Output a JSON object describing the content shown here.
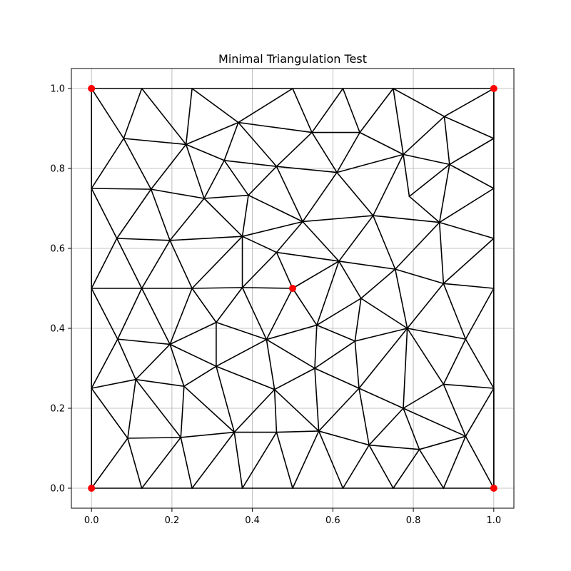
{
  "chart_data": {
    "type": "scatter",
    "title": "Minimal Triangulation Test",
    "xlabel": "",
    "ylabel": "",
    "xlim": [
      -0.05,
      1.05
    ],
    "ylim": [
      -0.05,
      1.05
    ],
    "xticks": [
      "0.0",
      "0.2",
      "0.4",
      "0.6",
      "0.8",
      "1.0"
    ],
    "yticks": [
      "0.0",
      "0.2",
      "0.4",
      "0.6",
      "0.8",
      "1.0"
    ],
    "grid": true,
    "colors": {
      "edges": "#000000",
      "highlight": "#ff0000",
      "grid": "#b0b0b0"
    },
    "highlight_points": [
      [
        0,
        0
      ],
      [
        1,
        0
      ],
      [
        0,
        1
      ],
      [
        1,
        1
      ],
      [
        0.5,
        0.5
      ]
    ],
    "vertices": [
      [
        0,
        0
      ],
      [
        0.125,
        0
      ],
      [
        0.25,
        0
      ],
      [
        0.375,
        0
      ],
      [
        0.5,
        0
      ],
      [
        0.625,
        0
      ],
      [
        0.75,
        0
      ],
      [
        0.875,
        0
      ],
      [
        1,
        0
      ],
      [
        0,
        1
      ],
      [
        0.125,
        1
      ],
      [
        0.25,
        1
      ],
      [
        0.5,
        1
      ],
      [
        0.625,
        1
      ],
      [
        0.75,
        1
      ],
      [
        1,
        1
      ],
      [
        0,
        0.25
      ],
      [
        0,
        0.5
      ],
      [
        0,
        0.75
      ],
      [
        1,
        0.25
      ],
      [
        1,
        0.5
      ],
      [
        1,
        0.625
      ],
      [
        1,
        0.75
      ],
      [
        1,
        0.875
      ],
      [
        0.08,
        0.875
      ],
      [
        0.235,
        0.86
      ],
      [
        0.365,
        0.915
      ],
      [
        0.548,
        0.89
      ],
      [
        0.667,
        0.89
      ],
      [
        0.877,
        0.93
      ],
      [
        0.33,
        0.82
      ],
      [
        0.46,
        0.805
      ],
      [
        0.61,
        0.79
      ],
      [
        0.775,
        0.835
      ],
      [
        0.89,
        0.81
      ],
      [
        0.148,
        0.748
      ],
      [
        0.28,
        0.725
      ],
      [
        0.39,
        0.733
      ],
      [
        0.79,
        0.73
      ],
      [
        0.063,
        0.625
      ],
      [
        0.195,
        0.62
      ],
      [
        0.375,
        0.63
      ],
      [
        0.525,
        0.667
      ],
      [
        0.7,
        0.682
      ],
      [
        0.865,
        0.665
      ],
      [
        0.46,
        0.59
      ],
      [
        0.615,
        0.568
      ],
      [
        0.755,
        0.548
      ],
      [
        0.125,
        0.5
      ],
      [
        0.25,
        0.5
      ],
      [
        0.375,
        0.502
      ],
      [
        0.5,
        0.5
      ],
      [
        0.875,
        0.512
      ],
      [
        0.67,
        0.475
      ],
      [
        0.31,
        0.415
      ],
      [
        0.56,
        0.408
      ],
      [
        0.785,
        0.4
      ],
      [
        0.065,
        0.373
      ],
      [
        0.195,
        0.36
      ],
      [
        0.435,
        0.372
      ],
      [
        0.655,
        0.368
      ],
      [
        0.93,
        0.373
      ],
      [
        0.31,
        0.305
      ],
      [
        0.555,
        0.3
      ],
      [
        0.11,
        0.272
      ],
      [
        0.23,
        0.255
      ],
      [
        0.455,
        0.247
      ],
      [
        0.665,
        0.25
      ],
      [
        0.875,
        0.26
      ],
      [
        0.775,
        0.2
      ],
      [
        0.355,
        0.14
      ],
      [
        0.46,
        0.14
      ],
      [
        0.565,
        0.143
      ],
      [
        0.09,
        0.125
      ],
      [
        0.222,
        0.127
      ],
      [
        0.69,
        0.108
      ],
      [
        0.815,
        0.097
      ],
      [
        0.93,
        0.13
      ]
    ],
    "edges": [
      [
        0,
        1
      ],
      [
        1,
        2
      ],
      [
        2,
        3
      ],
      [
        3,
        4
      ],
      [
        4,
        5
      ],
      [
        5,
        6
      ],
      [
        6,
        7
      ],
      [
        7,
        8
      ],
      [
        9,
        10
      ],
      [
        10,
        11
      ],
      [
        11,
        12
      ],
      [
        12,
        13
      ],
      [
        13,
        14
      ],
      [
        14,
        15
      ],
      [
        0,
        16
      ],
      [
        16,
        17
      ],
      [
        17,
        18
      ],
      [
        18,
        9
      ],
      [
        8,
        19
      ],
      [
        19,
        20
      ],
      [
        20,
        21
      ],
      [
        21,
        22
      ],
      [
        22,
        23
      ],
      [
        23,
        15
      ],
      [
        9,
        24
      ],
      [
        24,
        10
      ],
      [
        10,
        25
      ],
      [
        24,
        25
      ],
      [
        25,
        11
      ],
      [
        25,
        26
      ],
      [
        11,
        26
      ],
      [
        26,
        12
      ],
      [
        26,
        27
      ],
      [
        12,
        27
      ],
      [
        27,
        13
      ],
      [
        27,
        28
      ],
      [
        13,
        28
      ],
      [
        28,
        14
      ],
      [
        14,
        33
      ],
      [
        14,
        29
      ],
      [
        29,
        15
      ],
      [
        15,
        23
      ],
      [
        29,
        23
      ],
      [
        24,
        18
      ],
      [
        24,
        35
      ],
      [
        18,
        35
      ],
      [
        25,
        35
      ],
      [
        25,
        36
      ],
      [
        35,
        36
      ],
      [
        25,
        30
      ],
      [
        30,
        26
      ],
      [
        26,
        31
      ],
      [
        30,
        36
      ],
      [
        30,
        37
      ],
      [
        36,
        37
      ],
      [
        30,
        31
      ],
      [
        31,
        27
      ],
      [
        31,
        37
      ],
      [
        31,
        32
      ],
      [
        31,
        42
      ],
      [
        27,
        32
      ],
      [
        28,
        32
      ],
      [
        28,
        33
      ],
      [
        32,
        33
      ],
      [
        33,
        29
      ],
      [
        33,
        34
      ],
      [
        29,
        34
      ],
      [
        34,
        23
      ],
      [
        34,
        22
      ],
      [
        33,
        38
      ],
      [
        34,
        38
      ],
      [
        32,
        43
      ],
      [
        32,
        42
      ],
      [
        33,
        43
      ],
      [
        38,
        44
      ],
      [
        34,
        44
      ],
      [
        22,
        44
      ],
      [
        43,
        44
      ],
      [
        21,
        44
      ],
      [
        18,
        39
      ],
      [
        35,
        39
      ],
      [
        35,
        40
      ],
      [
        39,
        40
      ],
      [
        36,
        40
      ],
      [
        36,
        41
      ],
      [
        40,
        41
      ],
      [
        37,
        41
      ],
      [
        37,
        42
      ],
      [
        41,
        42
      ],
      [
        42,
        43
      ],
      [
        42,
        46
      ],
      [
        43,
        46
      ],
      [
        43,
        47
      ],
      [
        44,
        47
      ],
      [
        44,
        52
      ],
      [
        21,
        52
      ],
      [
        20,
        52
      ],
      [
        45,
        41
      ],
      [
        45,
        42
      ],
      [
        45,
        46
      ],
      [
        45,
        50
      ],
      [
        45,
        51
      ],
      [
        17,
        39
      ],
      [
        39,
        48
      ],
      [
        40,
        48
      ],
      [
        40,
        49
      ],
      [
        41,
        49
      ],
      [
        41,
        50
      ],
      [
        46,
        47
      ],
      [
        47,
        52
      ],
      [
        46,
        53
      ],
      [
        47,
        53
      ],
      [
        47,
        56
      ],
      [
        52,
        56
      ],
      [
        52,
        61
      ],
      [
        20,
        61
      ],
      [
        17,
        48
      ],
      [
        48,
        49
      ],
      [
        49,
        50
      ],
      [
        50,
        51
      ],
      [
        51,
        46
      ],
      [
        51,
        55
      ],
      [
        55,
        46
      ],
      [
        55,
        53
      ],
      [
        53,
        60
      ],
      [
        53,
        56
      ],
      [
        60,
        56
      ],
      [
        48,
        57
      ],
      [
        48,
        58
      ],
      [
        17,
        57
      ],
      [
        57,
        58
      ],
      [
        49,
        58
      ],
      [
        49,
        54
      ],
      [
        54,
        50
      ],
      [
        54,
        58
      ],
      [
        50,
        59
      ],
      [
        51,
        59
      ],
      [
        59,
        55
      ],
      [
        55,
        60
      ],
      [
        56,
        61
      ],
      [
        61,
        19
      ],
      [
        56,
        68
      ],
      [
        61,
        68
      ],
      [
        68,
        19
      ],
      [
        57,
        16
      ],
      [
        57,
        64
      ],
      [
        58,
        64
      ],
      [
        58,
        65
      ],
      [
        58,
        62
      ],
      [
        54,
        62
      ],
      [
        54,
        59
      ],
      [
        59,
        62
      ],
      [
        59,
        63
      ],
      [
        55,
        63
      ],
      [
        60,
        63
      ],
      [
        60,
        67
      ],
      [
        56,
        67
      ],
      [
        56,
        69
      ],
      [
        16,
        64
      ],
      [
        64,
        65
      ],
      [
        62,
        65
      ],
      [
        62,
        66
      ],
      [
        59,
        66
      ],
      [
        63,
        66
      ],
      [
        63,
        67
      ],
      [
        67,
        69
      ],
      [
        68,
        69
      ],
      [
        16,
        73
      ],
      [
        64,
        73
      ],
      [
        64,
        74
      ],
      [
        65,
        74
      ],
      [
        65,
        70
      ],
      [
        62,
        70
      ],
      [
        66,
        70
      ],
      [
        66,
        71
      ],
      [
        63,
        72
      ],
      [
        66,
        72
      ],
      [
        67,
        72
      ],
      [
        67,
        75
      ],
      [
        69,
        75
      ],
      [
        69,
        76
      ],
      [
        68,
        77
      ],
      [
        69,
        77
      ],
      [
        19,
        77
      ],
      [
        73,
        74
      ],
      [
        74,
        70
      ],
      [
        70,
        71
      ],
      [
        71,
        72
      ],
      [
        72,
        75
      ],
      [
        75,
        76
      ],
      [
        76,
        77
      ],
      [
        0,
        73
      ],
      [
        1,
        73
      ],
      [
        1,
        74
      ],
      [
        2,
        74
      ],
      [
        2,
        70
      ],
      [
        3,
        70
      ],
      [
        3,
        71
      ],
      [
        4,
        71
      ],
      [
        4,
        72
      ],
      [
        5,
        72
      ],
      [
        5,
        75
      ],
      [
        6,
        75
      ],
      [
        6,
        76
      ],
      [
        7,
        76
      ],
      [
        7,
        77
      ],
      [
        8,
        77
      ],
      [
        8,
        19
      ]
    ]
  }
}
